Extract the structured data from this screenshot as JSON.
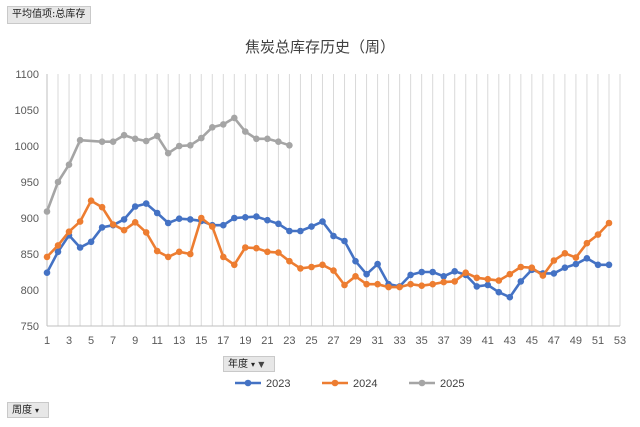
{
  "ui": {
    "values_button": "平均值项:总库存",
    "year_button": "年度",
    "week_button": "周度"
  },
  "chart_data": {
    "type": "line",
    "title": "焦炭总库存历史（周）",
    "xlabel": "",
    "ylabel": "",
    "xlim": [
      1,
      53
    ],
    "ylim": [
      750,
      1100
    ],
    "yticks": [
      750,
      800,
      850,
      900,
      950,
      1000,
      1050,
      1100
    ],
    "xticks": [
      1,
      3,
      5,
      7,
      9,
      11,
      13,
      15,
      17,
      19,
      21,
      23,
      25,
      27,
      29,
      31,
      33,
      35,
      37,
      39,
      41,
      43,
      45,
      47,
      49,
      51,
      53
    ],
    "grid": "vertical",
    "legend": "bottom",
    "series": [
      {
        "name": "2023",
        "color": "#4472c4",
        "x": [
          1,
          2,
          3,
          4,
          5,
          6,
          7,
          8,
          9,
          10,
          11,
          12,
          13,
          14,
          15,
          16,
          17,
          18,
          19,
          20,
          21,
          22,
          23,
          24,
          25,
          26,
          27,
          28,
          29,
          30,
          31,
          32,
          33,
          34,
          35,
          36,
          37,
          38,
          39,
          40,
          41,
          42,
          43,
          44,
          45,
          46,
          47,
          48,
          49,
          50,
          51,
          52
        ],
        "values": [
          824,
          853,
          876,
          859,
          867,
          887,
          890,
          898,
          916,
          920,
          907,
          893,
          899,
          898,
          896,
          890,
          890,
          900,
          901,
          902,
          897,
          892,
          882,
          882,
          888,
          895,
          875,
          868,
          840,
          822,
          836,
          808,
          805,
          821,
          825,
          825,
          819,
          826,
          821,
          805,
          807,
          797,
          790,
          812,
          828,
          823,
          823,
          831,
          836,
          844,
          835,
          835
        ]
      },
      {
        "name": "2024",
        "color": "#ed7d31",
        "x": [
          1,
          2,
          3,
          4,
          5,
          6,
          7,
          8,
          9,
          10,
          11,
          12,
          13,
          14,
          15,
          16,
          17,
          18,
          19,
          20,
          21,
          22,
          23,
          24,
          25,
          26,
          27,
          28,
          29,
          30,
          31,
          32,
          33,
          34,
          35,
          36,
          37,
          38,
          39,
          40,
          41,
          42,
          43,
          44,
          45,
          46,
          47,
          48,
          49,
          50,
          51,
          52
        ],
        "values": [
          846,
          862,
          881,
          895,
          924,
          915,
          891,
          883,
          894,
          880,
          854,
          846,
          853,
          850,
          900,
          888,
          846,
          835,
          859,
          858,
          853,
          852,
          840,
          830,
          832,
          835,
          827,
          807,
          819,
          808,
          808,
          804,
          804,
          808,
          806,
          808,
          811,
          812,
          824,
          817,
          815,
          813,
          822,
          832,
          831,
          820,
          841,
          851,
          845,
          865,
          877,
          893
        ]
      },
      {
        "name": "2025",
        "color": "#a5a5a5",
        "x": [
          1,
          2,
          3,
          4,
          6,
          7,
          8,
          9,
          10,
          11,
          12,
          13,
          14,
          15,
          16,
          17,
          18,
          19,
          20,
          21,
          22,
          23
        ],
        "values": [
          909,
          950,
          974,
          1008,
          1006,
          1006,
          1015,
          1010,
          1007,
          1014,
          990,
          1000,
          1001,
          1011,
          1026,
          1030,
          1039,
          1020,
          1010,
          1010,
          1006,
          1001
        ]
      }
    ]
  }
}
